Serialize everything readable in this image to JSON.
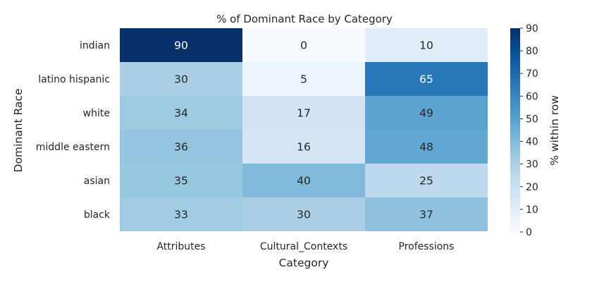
{
  "chart_data": {
    "type": "heatmap",
    "title": "% of Dominant Race by Category",
    "xlabel": "Category",
    "ylabel": "Dominant Race",
    "x_categories": [
      "Attributes",
      "Cultural_Contexts",
      "Professions"
    ],
    "y_categories": [
      "indian",
      "latino hispanic",
      "white",
      "middle eastern",
      "asian",
      "black"
    ],
    "values": [
      [
        90,
        0,
        10
      ],
      [
        30,
        5,
        65
      ],
      [
        34,
        17,
        49
      ],
      [
        36,
        16,
        48
      ],
      [
        35,
        40,
        25
      ],
      [
        33,
        30,
        37
      ]
    ],
    "colorbar": {
      "label": "% within row",
      "range": [
        0,
        90
      ],
      "ticks": [
        0,
        10,
        20,
        30,
        40,
        50,
        60,
        70,
        80,
        90
      ]
    },
    "colormap": "Blues",
    "colors": {
      "low": "#f7fbff",
      "high": "#08306b",
      "text_dark": "#262626",
      "text_light": "#ffffff"
    }
  }
}
